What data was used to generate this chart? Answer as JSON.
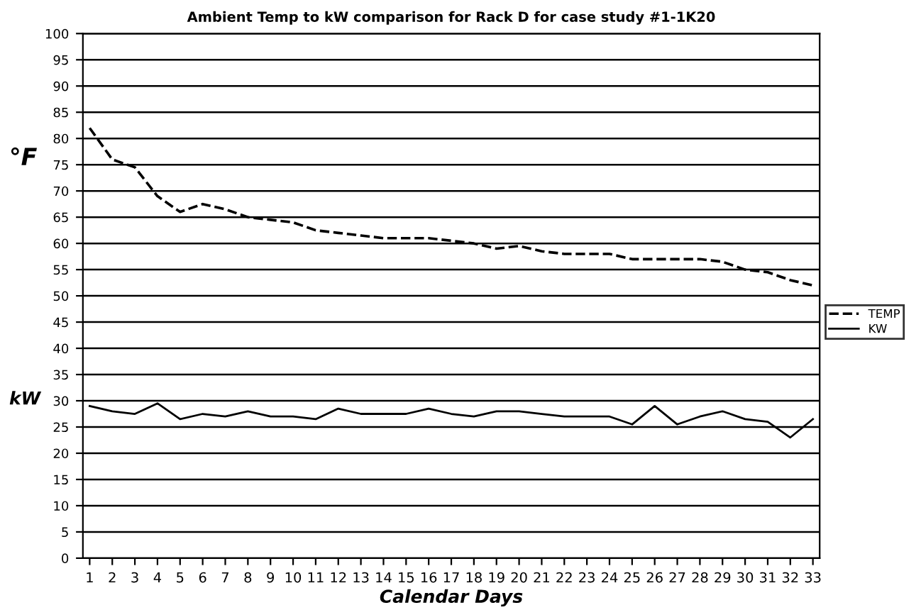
{
  "chart_data": {
    "type": "line",
    "title": "Ambient Temp to kW comparison for Rack D for case study #1-1K20",
    "xlabel": "Calendar Days",
    "categories": [
      "1",
      "2",
      "3",
      "4",
      "5",
      "6",
      "7",
      "8",
      "9",
      "10",
      "11",
      "12",
      "13",
      "14",
      "15",
      "16",
      "17",
      "18",
      "19",
      "20",
      "21",
      "22",
      "23",
      "24",
      "25",
      "26",
      "27",
      "28",
      "29",
      "30",
      "31",
      "32",
      "33"
    ],
    "series": [
      {
        "name": "TEMP",
        "color": "#000000",
        "line_style": "dashed",
        "values": [
          82,
          76,
          74.5,
          69,
          66,
          67.5,
          66.5,
          65,
          64.5,
          64,
          62.5,
          62,
          61.5,
          61,
          61,
          61,
          60.5,
          60,
          59,
          59.5,
          58.5,
          58,
          58,
          58,
          57,
          57,
          57,
          57,
          56.5,
          55,
          54.5,
          53,
          52
        ]
      },
      {
        "name": "KW",
        "color": "#000000",
        "line_style": "solid",
        "values": [
          29,
          28,
          27.5,
          29.5,
          26.5,
          27.5,
          27,
          28,
          27,
          27,
          26.5,
          28.5,
          27.5,
          27.5,
          27.5,
          28.5,
          27.5,
          27,
          28,
          28,
          27.5,
          27,
          27,
          27,
          25.5,
          29,
          25.5,
          27,
          28,
          26.5,
          26,
          23,
          26.5
        ]
      }
    ],
    "annotations": [
      "°F",
      "kW"
    ],
    "ylim": [
      0,
      100
    ],
    "yticks": [
      0,
      5,
      10,
      15,
      20,
      25,
      30,
      35,
      40,
      45,
      50,
      55,
      60,
      65,
      70,
      75,
      80,
      85,
      90,
      95,
      100
    ],
    "grid": "y",
    "legend": "right",
    "marker": "none"
  }
}
